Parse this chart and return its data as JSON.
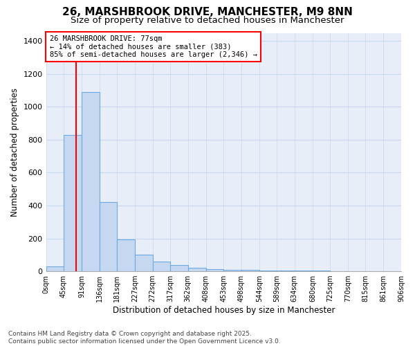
{
  "title_line1": "26, MARSHBROOK DRIVE, MANCHESTER, M9 8NN",
  "title_line2": "Size of property relative to detached houses in Manchester",
  "xlabel": "Distribution of detached houses by size in Manchester",
  "ylabel": "Number of detached properties",
  "bin_edges": [
    0,
    45,
    91,
    136,
    181,
    227,
    272,
    317,
    362,
    408,
    453,
    498,
    544,
    589,
    634,
    680,
    725,
    770,
    815,
    861,
    906
  ],
  "bar_heights": [
    28,
    830,
    1090,
    420,
    193,
    100,
    58,
    38,
    22,
    15,
    10,
    8,
    6,
    5,
    4,
    3,
    2,
    2,
    1,
    1
  ],
  "bar_color": "#c5d8f0",
  "bar_edge_color": "#6aaae0",
  "fig_background_color": "#ffffff",
  "ax_background_color": "#e8eef8",
  "grid_color": "#c8d8f0",
  "red_line_x": 77,
  "annotation_box_text": "26 MARSHBROOK DRIVE: 77sqm\n← 14% of detached houses are smaller (383)\n85% of semi-detached houses are larger (2,346) →",
  "ylim": [
    0,
    1450
  ],
  "yticks": [
    0,
    200,
    400,
    600,
    800,
    1000,
    1200,
    1400
  ],
  "footnote": "Contains HM Land Registry data © Crown copyright and database right 2025.\nContains public sector information licensed under the Open Government Licence v3.0.",
  "title_fontsize": 11,
  "subtitle_fontsize": 9.5,
  "tick_label_fontsize": 7,
  "ylabel_fontsize": 8.5,
  "xlabel_fontsize": 8.5,
  "annotation_fontsize": 7.5,
  "footnote_fontsize": 6.5
}
